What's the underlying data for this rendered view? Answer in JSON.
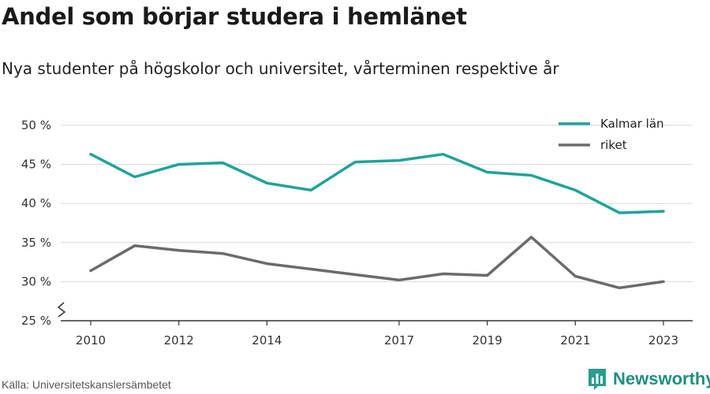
{
  "title": "Andel som börjar studera i hemlänet",
  "subtitle": "Nya studenter på högskolor och universitet, vårterminen respektive år",
  "source": "Källa: Universitetskanslersämbetet",
  "brand": {
    "name": "Newsworthy",
    "icon": "bar-chart-logo-icon",
    "color": "#2a9d8f"
  },
  "colors": {
    "kalmar": "#1ea39a",
    "riket": "#6b6b6b",
    "grid": "#d9d9d9",
    "axis": "#333333"
  },
  "chart_data": {
    "type": "line",
    "title": "Andel som börjar studera i hemlänet",
    "xlabel": "",
    "ylabel": "",
    "x": [
      2010,
      2011,
      2012,
      2013,
      2014,
      2015,
      2016,
      2017,
      2018,
      2019,
      2020,
      2021,
      2022,
      2023
    ],
    "x_ticks": [
      2010,
      2012,
      2014,
      2017,
      2019,
      2021,
      2023
    ],
    "x_tick_labels": [
      "2010",
      "2012",
      "2014",
      "2017",
      "2019",
      "2021",
      "2023"
    ],
    "ylim": [
      25,
      50
    ],
    "y_ticks": [
      25,
      30,
      35,
      40,
      45,
      50
    ],
    "y_tick_labels": [
      "25 %",
      "30 %",
      "35 %",
      "40 %",
      "45 %",
      "50 %"
    ],
    "y_axis_break": true,
    "grid": true,
    "legend_position": "top-right",
    "series": [
      {
        "name": "Kalmar län",
        "color": "#1ea39a",
        "values": [
          46.3,
          43.4,
          45.0,
          45.2,
          42.6,
          41.7,
          45.3,
          45.5,
          46.3,
          44.0,
          43.6,
          41.7,
          38.8,
          39.0
        ]
      },
      {
        "name": "riket",
        "color": "#6b6b6b",
        "values": [
          31.4,
          34.6,
          34.0,
          33.6,
          32.3,
          31.6,
          30.9,
          30.2,
          31.0,
          30.8,
          35.7,
          30.7,
          29.2,
          30.0
        ]
      }
    ]
  }
}
